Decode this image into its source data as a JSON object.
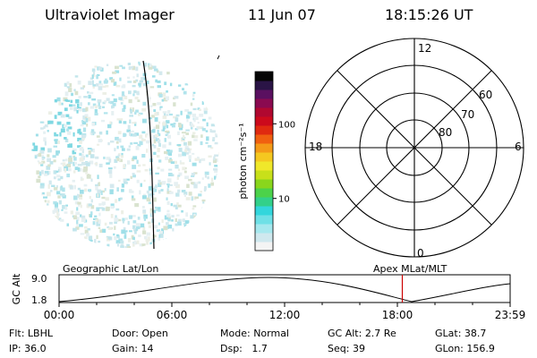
{
  "header": {
    "title": "Ultraviolet Imager",
    "date": "11 Jun 07",
    "time": "18:15:26 UT"
  },
  "colorbar": {
    "unit_label": "photon cm⁻²s⁻¹",
    "ticks": [
      "100",
      "10"
    ],
    "tick_values": [
      100,
      10
    ],
    "range": [
      2,
      500
    ],
    "scale": "log",
    "colors": [
      "#f4f4f4",
      "#cfe8ee",
      "#a6e8ee",
      "#6fe0e6",
      "#33d6dc",
      "#33d08a",
      "#4cd24a",
      "#8ad61c",
      "#c8e01a",
      "#f0e82a",
      "#f5c820",
      "#f49a18",
      "#f06010",
      "#e02a10",
      "#cc0a1c",
      "#b00830",
      "#8a0a50",
      "#5a1060",
      "#2a1446",
      "#050505"
    ]
  },
  "polar": {
    "mlt_labels": {
      "top": "12",
      "left": "18",
      "right": "6",
      "bottom": "0"
    },
    "lat_labels": [
      "60",
      "70",
      "80"
    ]
  },
  "alt_plot": {
    "ylabel": "GC Alt",
    "yticks": [
      "9.0",
      "1.8"
    ],
    "left_title": "Geographic Lat/Lon",
    "right_title": "Apex MLat/MLT",
    "xticks": [
      "00:00",
      "06:00",
      "12:00",
      "18:00",
      "23:59"
    ],
    "current_time_hours": 18.26
  },
  "info": {
    "row1": [
      {
        "label": "Flt:",
        "value": "LBHL"
      },
      {
        "label": "Door:",
        "value": "Open"
      },
      {
        "label": "Mode:",
        "value": "Normal"
      },
      {
        "label": "GC Alt:",
        "value": "2.7 Re"
      },
      {
        "label": "GLat:",
        "value": "38.7"
      }
    ],
    "row2": [
      {
        "label": "IP:",
        "value": "36.0"
      },
      {
        "label": "Gain:",
        "value": "14"
      },
      {
        "label": "Dsp:",
        "value": "1.7"
      },
      {
        "label": "Seq:",
        "value": "39"
      },
      {
        "label": "GLon:",
        "value": "156.9"
      }
    ]
  },
  "accent": {
    "time_marker": "#cc0000"
  }
}
